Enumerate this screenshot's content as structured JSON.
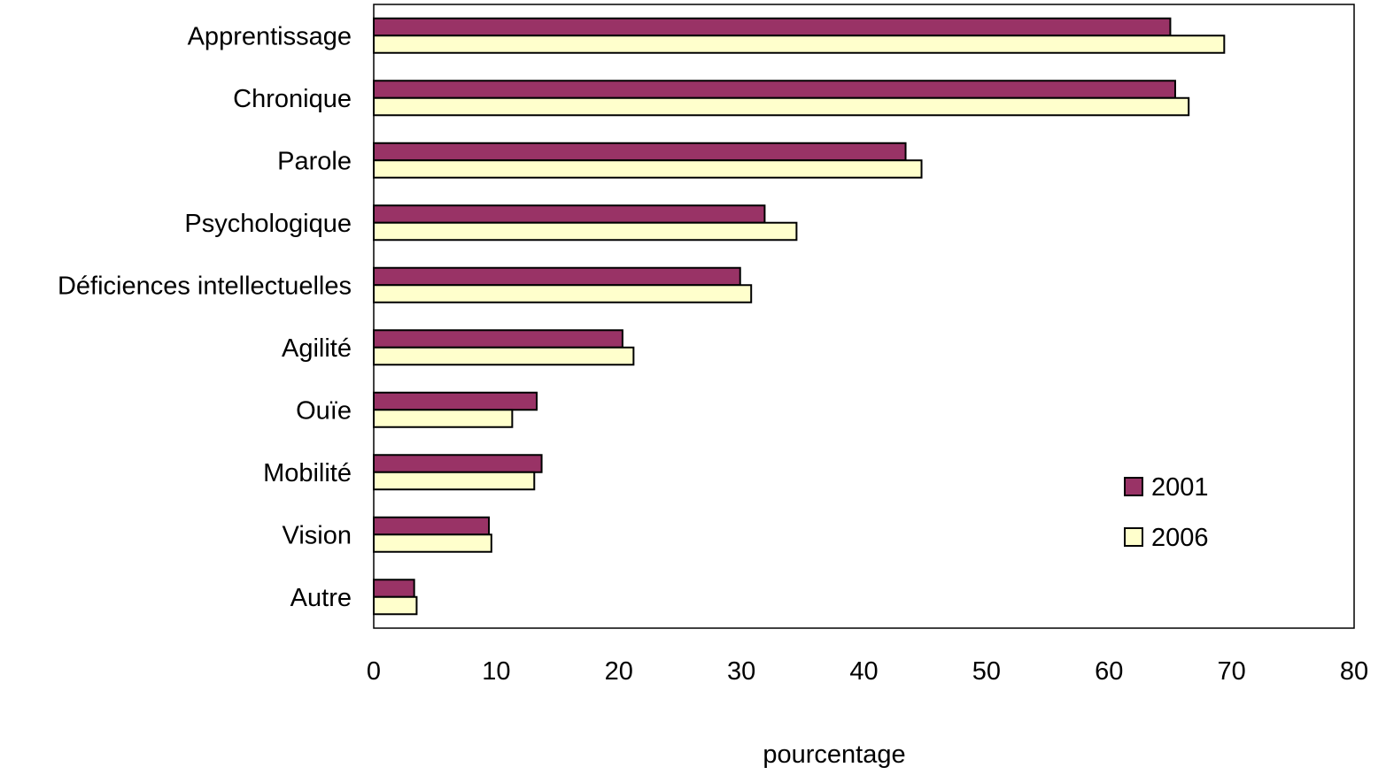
{
  "chart_data": {
    "type": "bar",
    "orientation": "horizontal",
    "categories": [
      "Apprentissage",
      "Chronique",
      "Parole",
      "Psychologique",
      "Déficiences intellectuelles",
      "Agilité",
      "Ouïe",
      "Mobilité",
      "Vision",
      "Autre"
    ],
    "series": [
      {
        "name": "2001",
        "color": "#993366",
        "values": [
          65.0,
          65.4,
          43.4,
          31.9,
          29.9,
          20.3,
          13.3,
          13.7,
          9.4,
          3.3
        ]
      },
      {
        "name": "2006",
        "color": "#FFFFCC",
        "values": [
          69.4,
          66.5,
          44.7,
          34.5,
          30.8,
          21.2,
          11.3,
          13.1,
          9.6,
          3.5
        ]
      }
    ],
    "xlabel": "pourcentage",
    "ylabel": "",
    "title": "",
    "xlim": [
      0,
      80
    ],
    "xticks": [
      0,
      10,
      20,
      30,
      40,
      50,
      60,
      70,
      80
    ],
    "grid": false,
    "legend_position": "bottom-right"
  }
}
